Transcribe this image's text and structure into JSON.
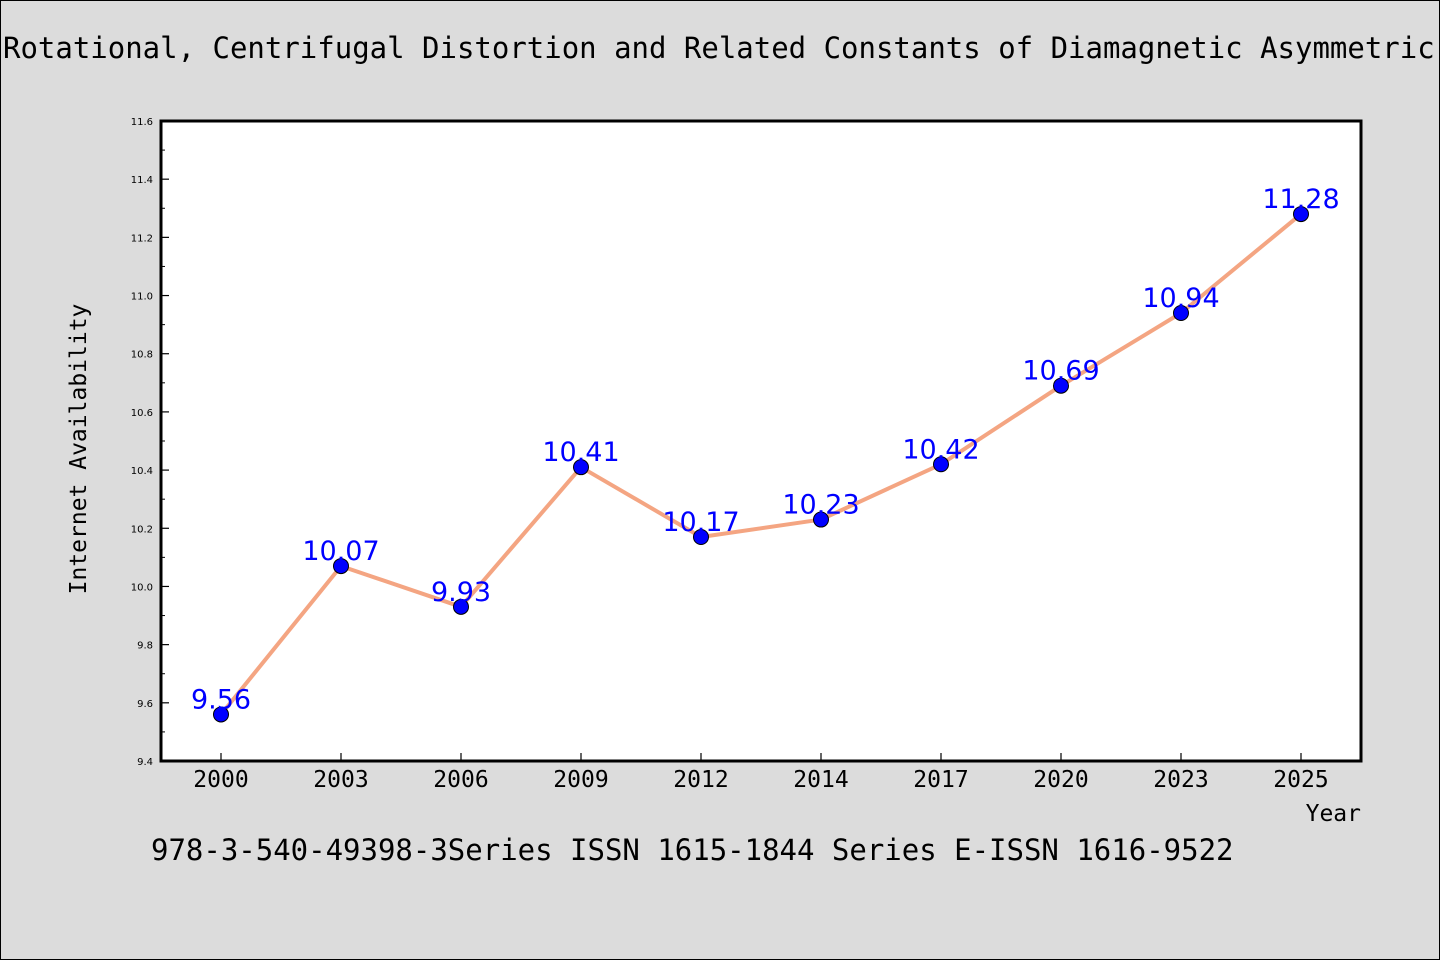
{
  "chart_data": {
    "type": "line",
    "title": "Rotational, Centrifugal Distortion and Related Constants of Diamagnetic Asymmetric",
    "xlabel": "Year",
    "ylabel": "Internet Availability",
    "categories": [
      "2000",
      "2003",
      "2006",
      "2009",
      "2012",
      "2014",
      "2017",
      "2020",
      "2023",
      "2025"
    ],
    "values": [
      9.56,
      10.07,
      9.93,
      10.41,
      10.17,
      10.23,
      10.42,
      10.69,
      10.94,
      11.28
    ],
    "value_labels": [
      "9.56",
      "10.07",
      "9.93",
      "10.41",
      "10.17",
      "10.23",
      "10.42",
      "10.69",
      "10.94",
      "11.28"
    ],
    "ylim": [
      9.4,
      11.6
    ],
    "yticks": [
      "9.4",
      "9.6",
      "9.8",
      "10.0",
      "10.2",
      "10.4",
      "10.6",
      "10.8",
      "11.0",
      "11.2",
      "11.4",
      "11.6"
    ],
    "grid": false,
    "line_color": "#f4a582",
    "marker_color": "#0000ff",
    "label_color": "#0000ff"
  },
  "footer": {
    "note": "978-3-540-49398-3Series ISSN 1615-1844 Series E-ISSN 1616-9522"
  }
}
